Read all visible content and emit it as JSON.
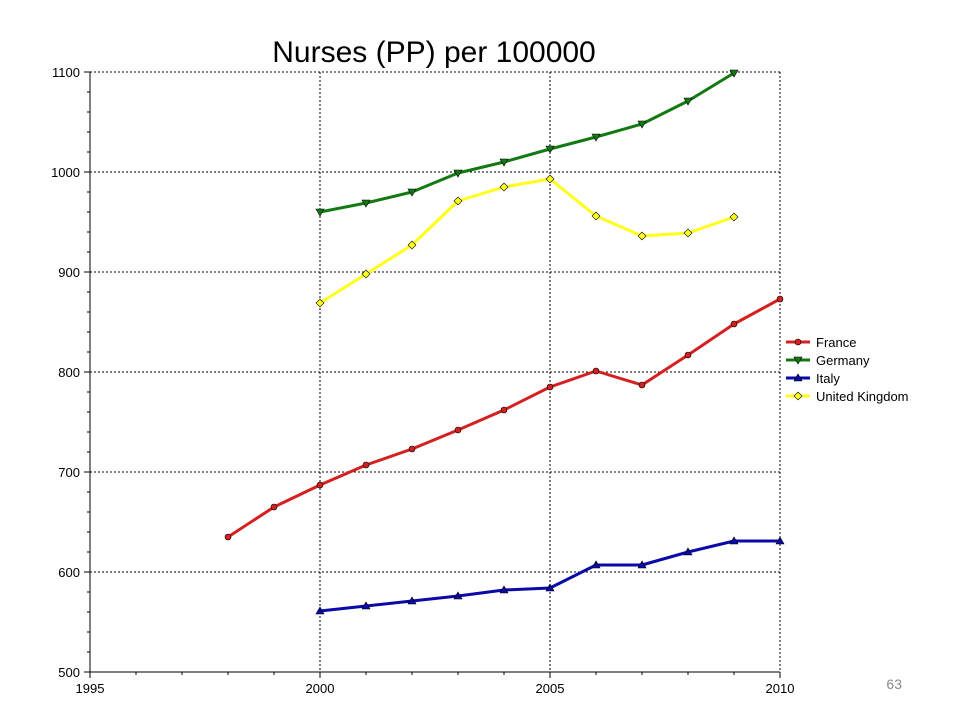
{
  "page_number": "63",
  "chart_data": {
    "type": "line",
    "title": "Nurses (PP) per 100000",
    "xlabel": "",
    "ylabel": "",
    "xlim": [
      1995,
      2010
    ],
    "ylim": [
      500,
      1100
    ],
    "x_ticks": [
      1995,
      2000,
      2005,
      2010
    ],
    "y_ticks": [
      500,
      600,
      700,
      800,
      900,
      1000,
      1100
    ],
    "grid": true,
    "legend_position": "right",
    "series": [
      {
        "name": "France",
        "color": "#d42020",
        "marker": "circle",
        "x": [
          1998,
          1999,
          2000,
          2001,
          2002,
          2003,
          2004,
          2005,
          2006,
          2007,
          2008,
          2009,
          2010
        ],
        "values": [
          635,
          665,
          687,
          707,
          723,
          742,
          762,
          785,
          801,
          787,
          817,
          848,
          873
        ]
      },
      {
        "name": "Germany",
        "color": "#137a13",
        "marker": "triangle-down",
        "x": [
          2000,
          2001,
          2002,
          2003,
          2004,
          2005,
          2006,
          2007,
          2008,
          2009
        ],
        "values": [
          960,
          969,
          980,
          999,
          1010,
          1023,
          1035,
          1048,
          1071,
          1099
        ]
      },
      {
        "name": "Italy",
        "color": "#0a0aa8",
        "marker": "triangle-up",
        "x": [
          2000,
          2001,
          2002,
          2003,
          2004,
          2005,
          2006,
          2007,
          2008,
          2009,
          2010
        ],
        "values": [
          561,
          566,
          571,
          576,
          582,
          584,
          607,
          607,
          620,
          631,
          631
        ]
      },
      {
        "name": "United Kingdom",
        "color": "#ffff1a",
        "marker": "diamond",
        "x": [
          2000,
          2001,
          2002,
          2003,
          2004,
          2005,
          2006,
          2007,
          2008,
          2009
        ],
        "values": [
          869,
          898,
          927,
          971,
          985,
          993,
          956,
          936,
          939,
          955
        ]
      }
    ]
  }
}
